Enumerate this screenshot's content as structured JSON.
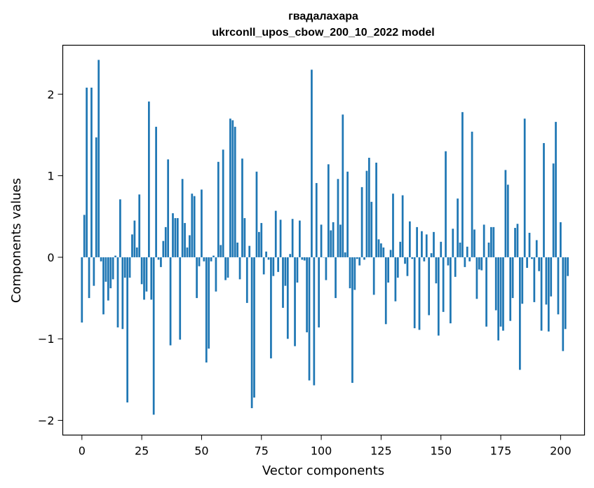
{
  "chart_data": {
    "type": "bar",
    "title": "гвадалахара",
    "subtitle": "ukrconll_upos_cbow_200_10_2022 model",
    "xlabel": "Vector components",
    "ylabel": "Components values",
    "xlim": [
      -8,
      210
    ],
    "ylim": [
      -2.18,
      2.6
    ],
    "xticks": [
      0,
      25,
      50,
      75,
      100,
      125,
      150,
      175,
      200
    ],
    "yticks": [
      -2,
      -1,
      0,
      1,
      2
    ],
    "ytick_labels": [
      "−2",
      "−1",
      "0",
      "1",
      "2"
    ],
    "grid": false,
    "legend": "none",
    "color": "#1f77b4",
    "values": [
      -0.8,
      0.52,
      2.08,
      -0.5,
      2.08,
      -0.35,
      1.47,
      2.42,
      -0.05,
      -0.7,
      -0.3,
      -0.53,
      -0.38,
      -0.27,
      0.02,
      -0.86,
      0.71,
      -0.88,
      -0.25,
      -1.78,
      -0.25,
      0.28,
      0.45,
      0.12,
      0.77,
      -0.33,
      -0.52,
      -0.42,
      1.91,
      -0.52,
      -1.93,
      1.6,
      -0.03,
      -0.12,
      0.2,
      0.37,
      1.2,
      -1.08,
      0.54,
      0.48,
      0.48,
      -1.01,
      0.96,
      0.42,
      0.12,
      0.27,
      0.78,
      0.75,
      -0.5,
      -0.11,
      0.83,
      -0.05,
      -1.29,
      -1.12,
      -0.05,
      0.02,
      -0.42,
      1.17,
      0.15,
      1.32,
      -0.28,
      -0.25,
      1.7,
      1.68,
      1.6,
      0.18,
      -0.27,
      1.21,
      0.48,
      -0.56,
      0.14,
      -1.85,
      -1.72,
      1.05,
      0.31,
      0.42,
      -0.21,
      0.07,
      -0.03,
      -1.24,
      -0.23,
      0.57,
      -0.18,
      0.46,
      -0.62,
      -0.35,
      -1.0,
      0.04,
      0.47,
      -1.09,
      -0.31,
      0.45,
      -0.03,
      -0.04,
      -0.92,
      -1.51,
      2.3,
      -1.57,
      0.91,
      -0.86,
      0.4,
      0.0,
      -0.28,
      1.14,
      0.33,
      0.43,
      -0.5,
      0.96,
      0.4,
      1.75,
      0.06,
      1.05,
      -0.38,
      -1.54,
      -0.4,
      -0.02,
      -0.1,
      0.86,
      -0.03,
      1.06,
      1.22,
      0.68,
      -0.46,
      1.16,
      0.22,
      0.17,
      0.12,
      -0.82,
      -0.31,
      0.09,
      0.78,
      -0.54,
      -0.25,
      0.19,
      0.76,
      -0.08,
      -0.23,
      0.44,
      -0.02,
      -0.87,
      0.37,
      -0.89,
      0.32,
      -0.05,
      0.28,
      -0.71,
      0.05,
      0.31,
      -0.32,
      -0.96,
      0.19,
      -0.67,
      1.3,
      -0.1,
      -0.81,
      0.35,
      -0.24,
      0.72,
      0.18,
      1.78,
      -0.12,
      0.13,
      -0.05,
      1.54,
      0.34,
      -0.51,
      -0.15,
      -0.16,
      0.4,
      -0.85,
      0.18,
      0.37,
      0.37,
      -0.65,
      -1.02,
      -0.85,
      -0.9,
      1.07,
      0.89,
      -0.78,
      -0.5,
      0.36,
      0.41,
      -1.38,
      -0.57,
      1.7,
      -0.13,
      0.3,
      -0.02,
      -0.55,
      0.21,
      -0.17,
      -0.9,
      1.4,
      -0.58,
      -0.91,
      -0.48,
      1.15,
      1.66,
      -0.7,
      0.43,
      -1.15,
      -0.88,
      -0.23
    ]
  }
}
